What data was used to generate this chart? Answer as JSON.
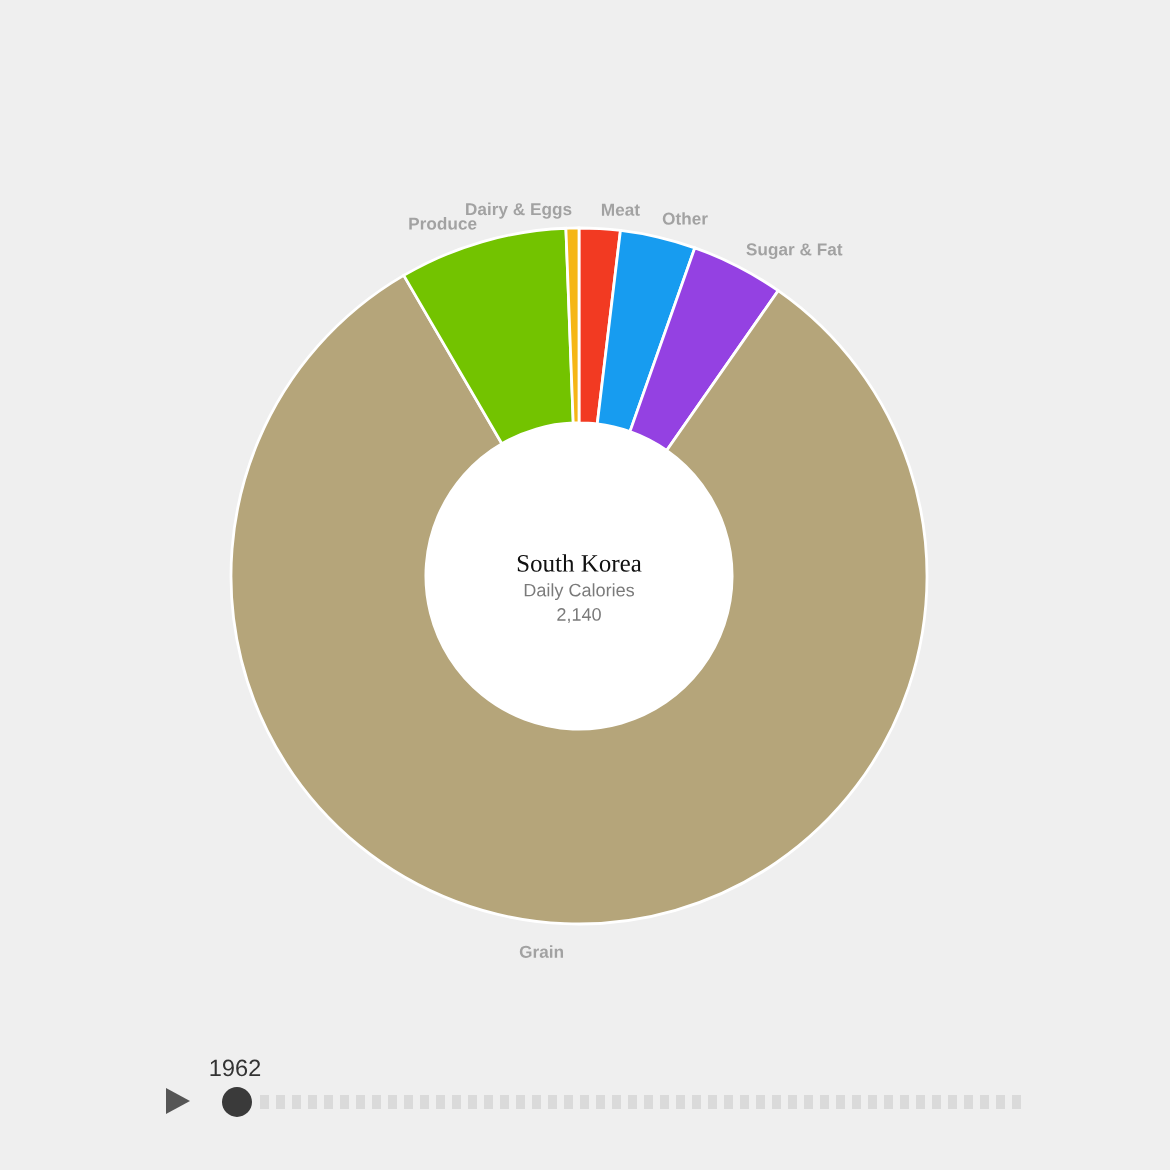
{
  "chart_data": {
    "type": "donut",
    "title": "South Korea",
    "subtitle": "Daily Calories",
    "annotations": [
      "2,140",
      "1962"
    ],
    "categories": [
      "Meat",
      "Other",
      "Sugar & Fat",
      "Grain",
      "Produce",
      "Dairy & Eggs"
    ],
    "values": [
      1.9,
      3.5,
      4.3,
      81.9,
      7.8,
      0.6
    ],
    "colors": [
      "#f23a22",
      "#179cf0",
      "#9441e2",
      "#b5a57a",
      "#73c300",
      "#f5b616"
    ]
  }
}
